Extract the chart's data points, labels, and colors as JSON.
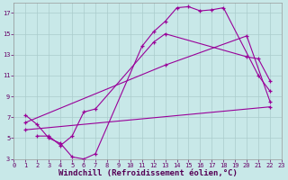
{
  "background_color": "#c8e8e8",
  "line_color": "#990099",
  "xlabel": "Windchill (Refroidissement éolien,°C)",
  "xlabel_fontsize": 6.5,
  "xlim": [
    0,
    23
  ],
  "ylim": [
    3,
    18
  ],
  "xticks": [
    0,
    1,
    2,
    3,
    4,
    5,
    6,
    7,
    8,
    9,
    10,
    11,
    12,
    13,
    14,
    15,
    16,
    17,
    18,
    19,
    20,
    21,
    22,
    23
  ],
  "yticks": [
    3,
    5,
    7,
    9,
    11,
    13,
    15,
    17
  ],
  "grid_color": "#aacccc",
  "line1_x": [
    1,
    2,
    3,
    4,
    5,
    6,
    7,
    11,
    12,
    13,
    14,
    15,
    16,
    17,
    18,
    21,
    22
  ],
  "line1_y": [
    7.2,
    6.3,
    5.0,
    4.5,
    3.2,
    3.0,
    3.5,
    13.8,
    15.2,
    16.2,
    17.5,
    17.6,
    17.2,
    17.3,
    17.5,
    11.0,
    9.5
  ],
  "line2_x": [
    2,
    3,
    4,
    5,
    6,
    7,
    12,
    13,
    20,
    21,
    22
  ],
  "line2_y": [
    5.2,
    5.2,
    4.3,
    5.2,
    7.5,
    7.8,
    14.2,
    15.0,
    12.8,
    12.6,
    10.5
  ],
  "line3_x": [
    1,
    13,
    20,
    22
  ],
  "line3_y": [
    6.5,
    12.0,
    14.8,
    8.5
  ],
  "line4_x": [
    1,
    22
  ],
  "line4_y": [
    5.8,
    8.0
  ]
}
